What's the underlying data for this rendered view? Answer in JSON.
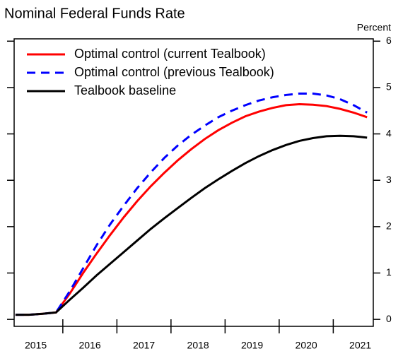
{
  "chart_data": {
    "type": "line",
    "title": "Nominal Federal Funds Rate",
    "y_axis_label": "Percent",
    "x": [
      2015.125,
      2015.375,
      2015.625,
      2015.875,
      2016.125,
      2016.375,
      2016.625,
      2016.875,
      2017.125,
      2017.375,
      2017.625,
      2017.875,
      2018.125,
      2018.375,
      2018.625,
      2018.875,
      2019.125,
      2019.375,
      2019.625,
      2019.875,
      2020.125,
      2020.375,
      2020.625,
      2020.875,
      2021.125,
      2021.375,
      2021.625
    ],
    "series": [
      {
        "name": "Optimal control (current Tealbook)",
        "color": "#ff0000",
        "dash": false,
        "values": [
          0.1,
          0.1,
          0.12,
          0.15,
          0.55,
          1.0,
          1.42,
          1.82,
          2.2,
          2.55,
          2.87,
          3.16,
          3.43,
          3.67,
          3.89,
          4.08,
          4.24,
          4.38,
          4.48,
          4.56,
          4.62,
          4.64,
          4.63,
          4.6,
          4.54,
          4.46,
          4.36
        ]
      },
      {
        "name": "Optimal control (previous Tealbook)",
        "color": "#0000ff",
        "dash": true,
        "values": [
          0.1,
          0.1,
          0.12,
          0.15,
          0.6,
          1.1,
          1.6,
          2.05,
          2.45,
          2.83,
          3.17,
          3.48,
          3.75,
          3.98,
          4.18,
          4.36,
          4.5,
          4.62,
          4.72,
          4.79,
          4.84,
          4.87,
          4.87,
          4.83,
          4.75,
          4.62,
          4.46
        ]
      },
      {
        "name": "Tealbook baseline",
        "color": "#000000",
        "dash": false,
        "values": [
          0.1,
          0.1,
          0.12,
          0.15,
          0.42,
          0.68,
          0.95,
          1.2,
          1.45,
          1.7,
          1.95,
          2.18,
          2.4,
          2.62,
          2.83,
          3.02,
          3.2,
          3.37,
          3.52,
          3.65,
          3.76,
          3.85,
          3.91,
          3.95,
          3.96,
          3.95,
          3.92
        ]
      }
    ],
    "xlim": [
      2015.1,
      2021.74
    ],
    "xticks": [
      {
        "value": 2015.5,
        "label": "2015"
      },
      {
        "value": 2016.5,
        "label": "2016"
      },
      {
        "value": 2017.5,
        "label": "2017"
      },
      {
        "value": 2018.5,
        "label": "2018"
      },
      {
        "value": 2019.5,
        "label": "2019"
      },
      {
        "value": 2020.5,
        "label": "2020"
      },
      {
        "value": 2021.5,
        "label": "2021"
      }
    ],
    "ylim": [
      -0.15,
      6.05
    ],
    "yticks": [
      0,
      1,
      2,
      3,
      4,
      5,
      6
    ]
  }
}
